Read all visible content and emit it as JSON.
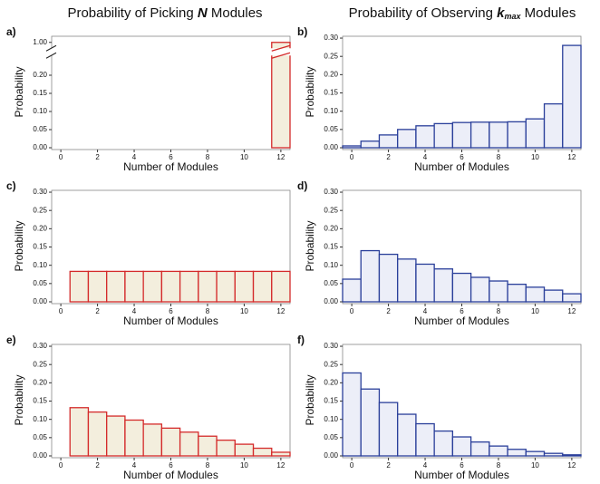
{
  "figure": {
    "titles": [
      [
        "Probability of Picking ",
        "N",
        " Modules"
      ],
      [
        "Probability of Observing ",
        "k",
        "max",
        " Modules"
      ]
    ]
  },
  "chart_data": [
    {
      "type": "bar",
      "label": "a)",
      "xlabel": "Number of Modules",
      "ylabel": "Probability",
      "color": "#d42a2a",
      "fill_color": "#f3eedd",
      "x": [
        0,
        1,
        2,
        3,
        4,
        5,
        6,
        7,
        8,
        9,
        10,
        11,
        12
      ],
      "values": [
        0,
        0,
        0,
        0,
        0,
        0,
        0,
        0,
        0,
        0,
        0,
        0,
        1.0
      ],
      "xlim": [
        -0.5,
        12.5
      ],
      "xticks": [
        0,
        2,
        4,
        6,
        8,
        10,
        12
      ],
      "ylim": [
        0,
        1.02
      ],
      "axis_break": [
        0.25,
        0.98
      ],
      "yticks": [
        {
          "value": 0,
          "label": "0.00"
        },
        {
          "value": 0.05,
          "label": "0.05"
        },
        {
          "value": 0.1,
          "label": "0.10"
        },
        {
          "value": 0.15,
          "label": "0.15"
        },
        {
          "value": 0.2,
          "label": "0.20"
        },
        {
          "value": 1.0,
          "label": "1.00"
        }
      ]
    },
    {
      "type": "bar",
      "label": "b)",
      "xlabel": "Number of Modules",
      "ylabel": "Probability",
      "color": "#2a3f9a",
      "fill_color": "#eceef8",
      "x": [
        0,
        1,
        2,
        3,
        4,
        5,
        6,
        7,
        8,
        9,
        10,
        11,
        12
      ],
      "values": [
        0.005,
        0.018,
        0.035,
        0.05,
        0.06,
        0.066,
        0.069,
        0.07,
        0.07,
        0.071,
        0.079,
        0.12,
        0.28
      ],
      "xlim": [
        -0.5,
        12.5
      ],
      "xticks": [
        0,
        2,
        4,
        6,
        8,
        10,
        12
      ],
      "ylim": [
        0,
        0.31
      ],
      "yticks": [
        {
          "value": 0,
          "label": "0.00"
        },
        {
          "value": 0.05,
          "label": "0.05"
        },
        {
          "value": 0.1,
          "label": "0.10"
        },
        {
          "value": 0.15,
          "label": "0.15"
        },
        {
          "value": 0.2,
          "label": "0.20"
        },
        {
          "value": 0.25,
          "label": "0.25"
        },
        {
          "value": 0.3,
          "label": "0.30"
        }
      ]
    },
    {
      "type": "bar",
      "label": "c)",
      "xlabel": "Number of Modules",
      "ylabel": "Probability",
      "color": "#d42a2a",
      "fill_color": "#f3eedd",
      "x": [
        0,
        1,
        2,
        3,
        4,
        5,
        6,
        7,
        8,
        9,
        10,
        11,
        12
      ],
      "values": [
        0,
        0.0833,
        0.0833,
        0.0833,
        0.0833,
        0.0833,
        0.0833,
        0.0833,
        0.0833,
        0.0833,
        0.0833,
        0.0833,
        0.0833
      ],
      "xlim": [
        -0.5,
        12.5
      ],
      "xticks": [
        0,
        2,
        4,
        6,
        8,
        10,
        12
      ],
      "ylim": [
        0,
        0.31
      ],
      "yticks": [
        {
          "value": 0,
          "label": "0.00"
        },
        {
          "value": 0.05,
          "label": "0.05"
        },
        {
          "value": 0.1,
          "label": "0.10"
        },
        {
          "value": 0.15,
          "label": "0.15"
        },
        {
          "value": 0.2,
          "label": "0.20"
        },
        {
          "value": 0.25,
          "label": "0.25"
        },
        {
          "value": 0.3,
          "label": "0.30"
        }
      ]
    },
    {
      "type": "bar",
      "label": "d)",
      "xlabel": "Number of Modules",
      "ylabel": "Probability",
      "color": "#2a3f9a",
      "fill_color": "#eceef8",
      "x": [
        0,
        1,
        2,
        3,
        4,
        5,
        6,
        7,
        8,
        9,
        10,
        11,
        12
      ],
      "values": [
        0.062,
        0.14,
        0.13,
        0.117,
        0.103,
        0.09,
        0.078,
        0.067,
        0.057,
        0.048,
        0.04,
        0.032,
        0.022
      ],
      "xlim": [
        -0.5,
        12.5
      ],
      "xticks": [
        0,
        2,
        4,
        6,
        8,
        10,
        12
      ],
      "ylim": [
        0,
        0.31
      ],
      "yticks": [
        {
          "value": 0,
          "label": "0.00"
        },
        {
          "value": 0.05,
          "label": "0.05"
        },
        {
          "value": 0.1,
          "label": "0.10"
        },
        {
          "value": 0.15,
          "label": "0.15"
        },
        {
          "value": 0.2,
          "label": "0.20"
        },
        {
          "value": 0.25,
          "label": "0.25"
        },
        {
          "value": 0.3,
          "label": "0.30"
        }
      ]
    },
    {
      "type": "bar",
      "label": "e)",
      "xlabel": "Number of Modules",
      "ylabel": "Probability",
      "color": "#d42a2a",
      "fill_color": "#f3eedd",
      "x": [
        0,
        1,
        2,
        3,
        4,
        5,
        6,
        7,
        8,
        9,
        10,
        11,
        12
      ],
      "values": [
        0,
        0.132,
        0.12,
        0.109,
        0.098,
        0.087,
        0.076,
        0.065,
        0.054,
        0.043,
        0.032,
        0.021,
        0.01
      ],
      "xlim": [
        -0.5,
        12.5
      ],
      "xticks": [
        0,
        2,
        4,
        6,
        8,
        10,
        12
      ],
      "ylim": [
        0,
        0.31
      ],
      "yticks": [
        {
          "value": 0,
          "label": "0.00"
        },
        {
          "value": 0.05,
          "label": "0.05"
        },
        {
          "value": 0.1,
          "label": "0.10"
        },
        {
          "value": 0.15,
          "label": "0.15"
        },
        {
          "value": 0.2,
          "label": "0.20"
        },
        {
          "value": 0.25,
          "label": "0.25"
        },
        {
          "value": 0.3,
          "label": "0.30"
        }
      ]
    },
    {
      "type": "bar",
      "label": "f)",
      "xlabel": "Number of Modules",
      "ylabel": "Probability",
      "color": "#2a3f9a",
      "fill_color": "#eceef8",
      "x": [
        0,
        1,
        2,
        3,
        4,
        5,
        6,
        7,
        8,
        9,
        10,
        11,
        12
      ],
      "values": [
        0.227,
        0.183,
        0.146,
        0.114,
        0.088,
        0.068,
        0.052,
        0.038,
        0.027,
        0.018,
        0.012,
        0.007,
        0.003
      ],
      "xlim": [
        -0.5,
        12.5
      ],
      "xticks": [
        0,
        2,
        4,
        6,
        8,
        10,
        12
      ],
      "ylim": [
        0,
        0.31
      ],
      "yticks": [
        {
          "value": 0,
          "label": "0.00"
        },
        {
          "value": 0.05,
          "label": "0.05"
        },
        {
          "value": 0.1,
          "label": "0.10"
        },
        {
          "value": 0.15,
          "label": "0.15"
        },
        {
          "value": 0.2,
          "label": "0.20"
        },
        {
          "value": 0.25,
          "label": "0.25"
        },
        {
          "value": 0.3,
          "label": "0.30"
        }
      ]
    }
  ]
}
